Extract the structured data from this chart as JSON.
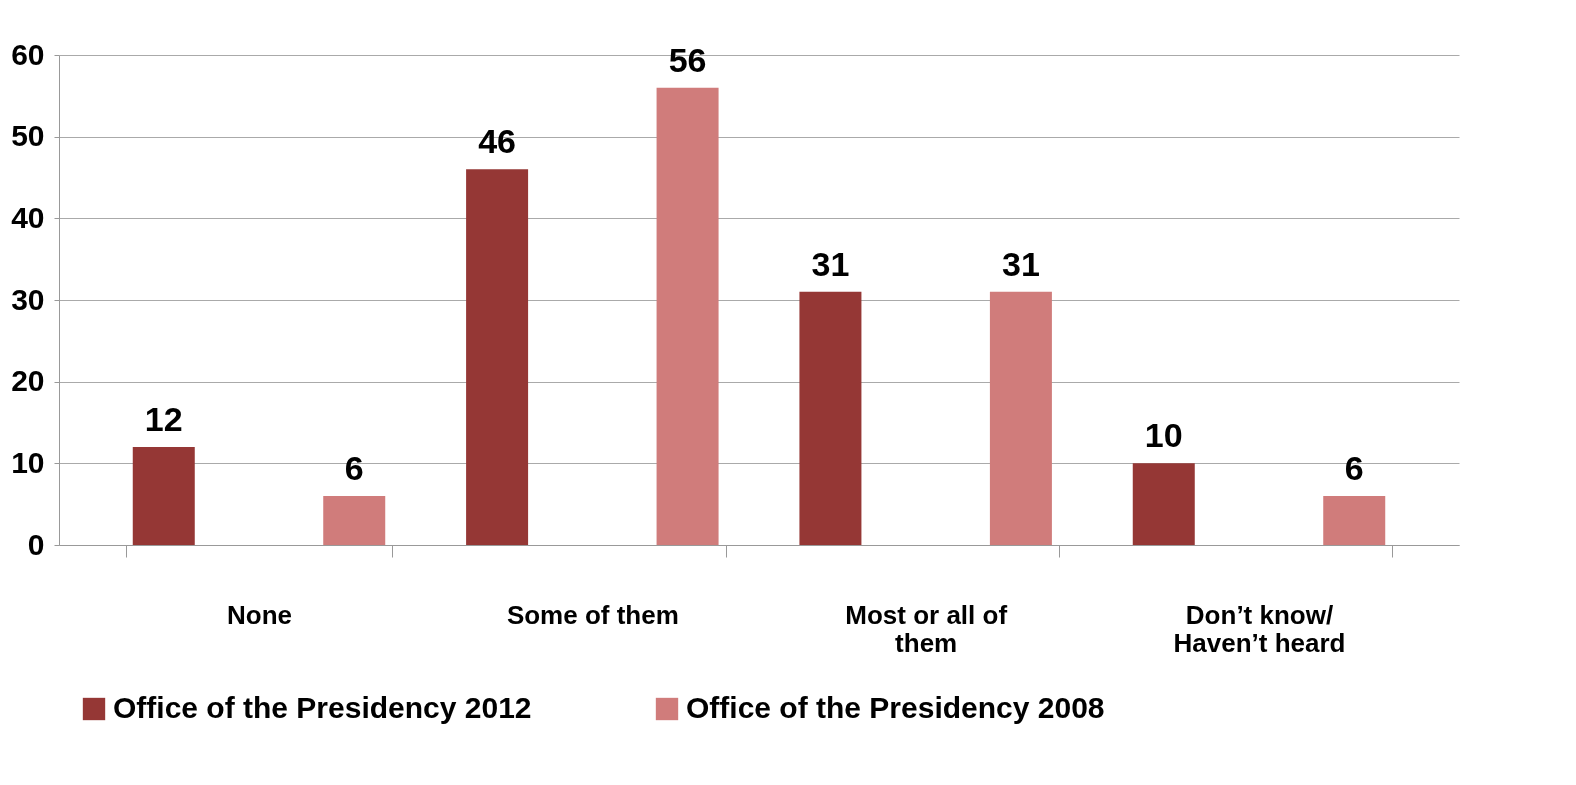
{
  "chart_data": {
    "type": "bar",
    "categories": [
      "None",
      "Some of them",
      "Most or all of them",
      "Don’t know/ Haven’t heard"
    ],
    "series": [
      {
        "name": "Office of the Presidency 2012",
        "color": "#953735",
        "values": [
          12,
          46,
          31,
          10
        ]
      },
      {
        "name": "Office of the Presidency 2008",
        "color": "#d07c7b",
        "values": [
          6,
          56,
          31,
          6
        ]
      }
    ],
    "ylim": [
      0,
      60
    ],
    "yticks": [
      0,
      10,
      20,
      30,
      40,
      50,
      60
    ],
    "grid": "y",
    "legend": "bottom",
    "data_labels": true
  }
}
